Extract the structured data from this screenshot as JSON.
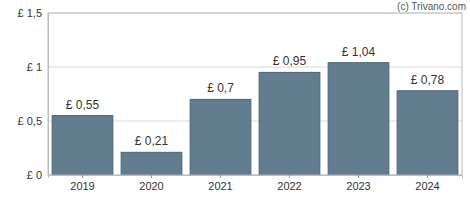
{
  "chart_data": {
    "type": "bar",
    "annotations": [
      "(c) Trivano.com"
    ],
    "categories": [
      "2019",
      "2020",
      "2021",
      "2022",
      "2023",
      "2024"
    ],
    "values": [
      0.55,
      0.21,
      0.7,
      0.95,
      1.04,
      0.78
    ],
    "value_labels": [
      "£ 0,55",
      "£ 0,21",
      "£ 0,7",
      "£ 0,95",
      "£ 1,04",
      "£ 0,78"
    ],
    "data_labels": true,
    "color": "#627d8f",
    "ylim": [
      0,
      1.5
    ],
    "yticks": [
      {
        "value": 0,
        "label": "£ 0"
      },
      {
        "value": 0.5,
        "label": "£ 0,5"
      },
      {
        "value": 1,
        "label": "£ 1"
      },
      {
        "value": 1.5,
        "label": "£ 1,5"
      }
    ],
    "grid": true
  }
}
